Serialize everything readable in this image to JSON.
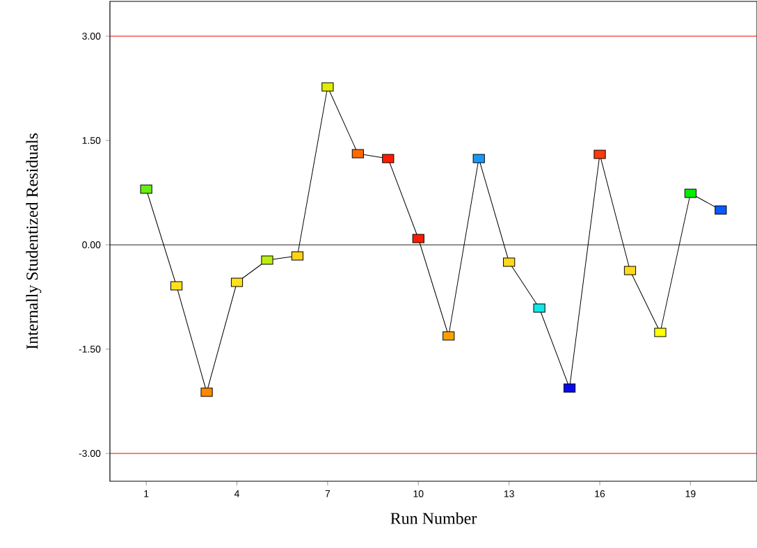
{
  "chart_data": {
    "type": "line",
    "xlabel": "Run Number",
    "ylabel": "Internally Studentized Residuals",
    "x": [
      1,
      2,
      3,
      4,
      5,
      6,
      7,
      8,
      9,
      10,
      11,
      12,
      13,
      14,
      15,
      16,
      17,
      18,
      19,
      20
    ],
    "series": [
      {
        "color": "#000000",
        "values": [
          0.8,
          -0.59,
          -2.12,
          -0.54,
          -0.22,
          -0.16,
          2.27,
          1.31,
          1.24,
          0.09,
          -1.31,
          1.24,
          -0.25,
          -0.91,
          -2.06,
          1.3,
          -0.37,
          -1.26,
          0.74,
          0.5
        ],
        "colors": [
          "#66ee11",
          "#ffe01a",
          "#ff8800",
          "#ffe01a",
          "#bbee11",
          "#ffd21a",
          "#ddee00",
          "#ff6a00",
          "#ff1a00",
          "#ff1a00",
          "#ffa000",
          "#1898ff",
          "#ffd81a",
          "#11e6e6",
          "#0a0aee",
          "#ff3a0a",
          "#ffd81a",
          "#ffff00",
          "#00ee00",
          "#0a5aff"
        ]
      }
    ],
    "marker": "square",
    "line_style": "solid",
    "xlim": [
      -0.2,
      21.2
    ],
    "ylim": [
      -3.4,
      3.5
    ],
    "xticks": [
      1,
      4,
      7,
      10,
      13,
      16,
      19
    ],
    "yticks": [
      {
        "value": -3,
        "label": "-3.00"
      },
      {
        "value": -1.5,
        "label": "-1.50"
      },
      {
        "value": 0,
        "label": "0.00"
      },
      {
        "value": 1.5,
        "label": "1.50"
      },
      {
        "value": 3,
        "label": "3.00"
      }
    ],
    "ref_lines": [
      {
        "axis": "y",
        "value": 3,
        "color": "#ee0000"
      },
      {
        "axis": "y",
        "value": 0,
        "color": "#000000"
      },
      {
        "axis": "y",
        "value": -3,
        "color": "#ee0000"
      }
    ],
    "tick_labels": "xy"
  }
}
